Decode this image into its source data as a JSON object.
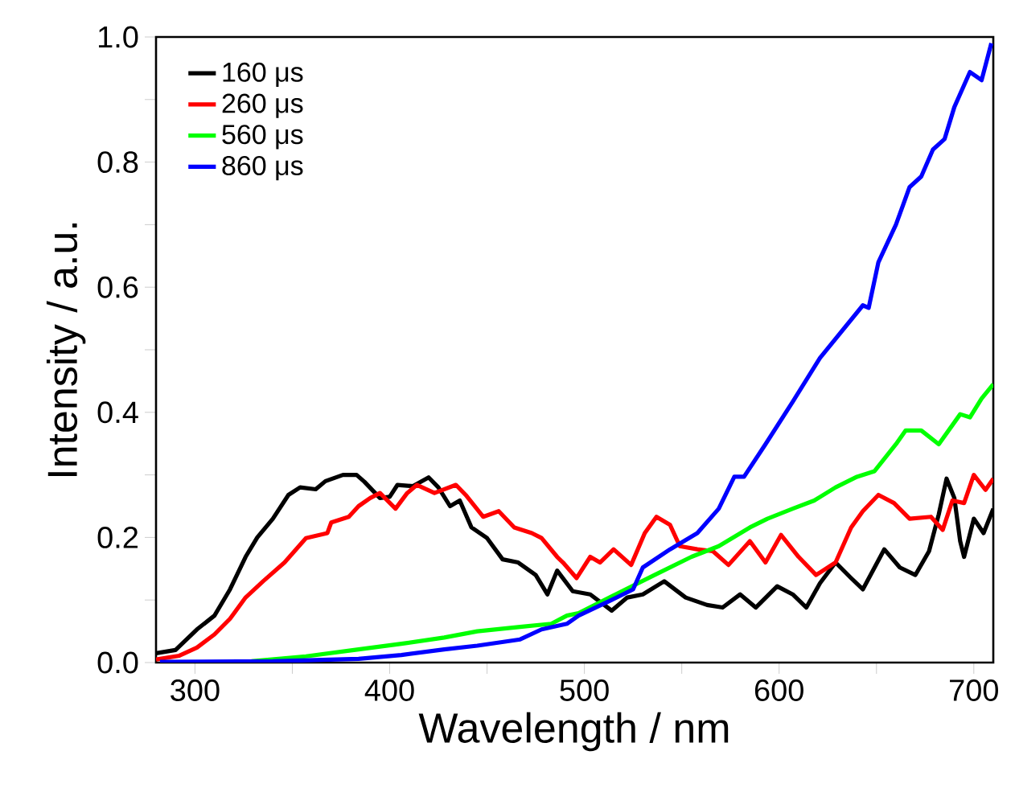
{
  "chart_data": {
    "type": "line",
    "xlabel": "Wavelength / nm",
    "ylabel": "Intensity / a.u.",
    "xlim": [
      280,
      710
    ],
    "ylim": [
      0,
      1.0
    ],
    "xticks": [
      300,
      {
        "value": 350,
        "label": null
      },
      400,
      {
        "value": 450,
        "label": null
      },
      500,
      {
        "value": 550,
        "label": null
      },
      600,
      {
        "value": 650,
        "label": null
      },
      700
    ],
    "yticks": [
      {
        "value": 0,
        "label": "0.0"
      },
      {
        "value": 0.1,
        "label": null
      },
      0.2,
      {
        "value": 0.3,
        "label": null
      },
      0.4,
      {
        "value": 0.5,
        "label": null
      },
      0.6,
      {
        "value": 0.7,
        "label": null
      },
      0.8,
      {
        "value": 0.9,
        "label": null
      },
      {
        "value": 1.0,
        "label": "1.0"
      }
    ],
    "legend": "top left",
    "series": [
      {
        "name": "160 μs",
        "color": "#000000",
        "x": [
          280,
          290,
          301,
          310,
          318,
          326,
          332,
          340,
          348,
          354,
          362,
          367,
          376,
          383,
          387,
          395,
          400,
          404,
          412,
          420,
          425,
          431,
          436,
          442,
          450,
          458,
          466,
          475,
          481,
          486,
          494,
          503,
          514,
          522,
          530,
          541,
          552,
          563,
          571,
          580,
          588,
          599,
          607,
          614,
          621,
          629,
          637,
          643,
          654,
          662,
          670,
          677,
          682,
          686,
          690,
          693,
          695,
          700,
          705,
          710
        ],
        "values": [
          0.015,
          0.02,
          0.053,
          0.075,
          0.117,
          0.169,
          0.2,
          0.23,
          0.268,
          0.28,
          0.277,
          0.29,
          0.3,
          0.3,
          0.289,
          0.263,
          0.265,
          0.284,
          0.282,
          0.296,
          0.28,
          0.25,
          0.259,
          0.216,
          0.199,
          0.165,
          0.16,
          0.14,
          0.109,
          0.147,
          0.114,
          0.109,
          0.083,
          0.104,
          0.109,
          0.13,
          0.104,
          0.092,
          0.088,
          0.109,
          0.088,
          0.122,
          0.109,
          0.088,
          0.127,
          0.16,
          0.135,
          0.117,
          0.181,
          0.152,
          0.14,
          0.178,
          0.237,
          0.294,
          0.263,
          0.194,
          0.169,
          0.23,
          0.207,
          0.246
        ]
      },
      {
        "name": "260 μs",
        "color": "#ff0000",
        "x": [
          280,
          292,
          301,
          310,
          318,
          326,
          335,
          346,
          357,
          368,
          370,
          379,
          384,
          390,
          395,
          403,
          409,
          414,
          423,
          434,
          439,
          448,
          456,
          464,
          473,
          478,
          486,
          489,
          496,
          503,
          508,
          515,
          524,
          531,
          537,
          544,
          549,
          558,
          566,
          574,
          585,
          593,
          601,
          610,
          619,
          629,
          637,
          643,
          651,
          659,
          667,
          678,
          684,
          689,
          695,
          700,
          706,
          710
        ],
        "values": [
          0.005,
          0.011,
          0.024,
          0.045,
          0.07,
          0.104,
          0.13,
          0.16,
          0.199,
          0.207,
          0.224,
          0.233,
          0.25,
          0.263,
          0.271,
          0.246,
          0.271,
          0.284,
          0.271,
          0.284,
          0.268,
          0.233,
          0.242,
          0.216,
          0.207,
          0.199,
          0.169,
          0.16,
          0.135,
          0.169,
          0.16,
          0.181,
          0.156,
          0.207,
          0.233,
          0.22,
          0.186,
          0.181,
          0.178,
          0.156,
          0.194,
          0.16,
          0.204,
          0.169,
          0.14,
          0.16,
          0.216,
          0.242,
          0.268,
          0.255,
          0.23,
          0.233,
          0.212,
          0.259,
          0.255,
          0.3,
          0.276,
          0.294
        ]
      },
      {
        "name": "560 μs",
        "color": "#00ff00",
        "x": [
          329,
          357,
          384,
          406,
          428,
          445,
          467,
          483,
          491,
          497,
          516,
          536,
          555,
          569,
          585,
          594,
          607,
          618,
          629,
          640,
          649,
          660,
          665,
          673,
          682,
          693,
          698,
          704,
          710
        ],
        "values": [
          0.002,
          0.01,
          0.021,
          0.03,
          0.04,
          0.05,
          0.057,
          0.062,
          0.075,
          0.079,
          0.109,
          0.14,
          0.169,
          0.186,
          0.216,
          0.23,
          0.246,
          0.259,
          0.28,
          0.297,
          0.306,
          0.349,
          0.371,
          0.371,
          0.349,
          0.397,
          0.392,
          0.422,
          0.445
        ]
      },
      {
        "name": "860 μs",
        "color": "#0000ff",
        "x": [
          282,
          340,
          384,
          406,
          428,
          445,
          467,
          478,
          491,
          497,
          514,
          525,
          530,
          544,
          558,
          569,
          577,
          582,
          593,
          607,
          621,
          632,
          643,
          646,
          651,
          660,
          667,
          673,
          679,
          685,
          690,
          698,
          704,
          709
        ],
        "values": [
          0.001,
          0.002,
          0.006,
          0.012,
          0.021,
          0.027,
          0.037,
          0.053,
          0.062,
          0.075,
          0.1,
          0.117,
          0.152,
          0.181,
          0.207,
          0.246,
          0.297,
          0.297,
          0.349,
          0.417,
          0.487,
          0.529,
          0.571,
          0.567,
          0.64,
          0.7,
          0.76,
          0.777,
          0.82,
          0.837,
          0.888,
          0.944,
          0.931,
          0.99
        ]
      }
    ]
  }
}
